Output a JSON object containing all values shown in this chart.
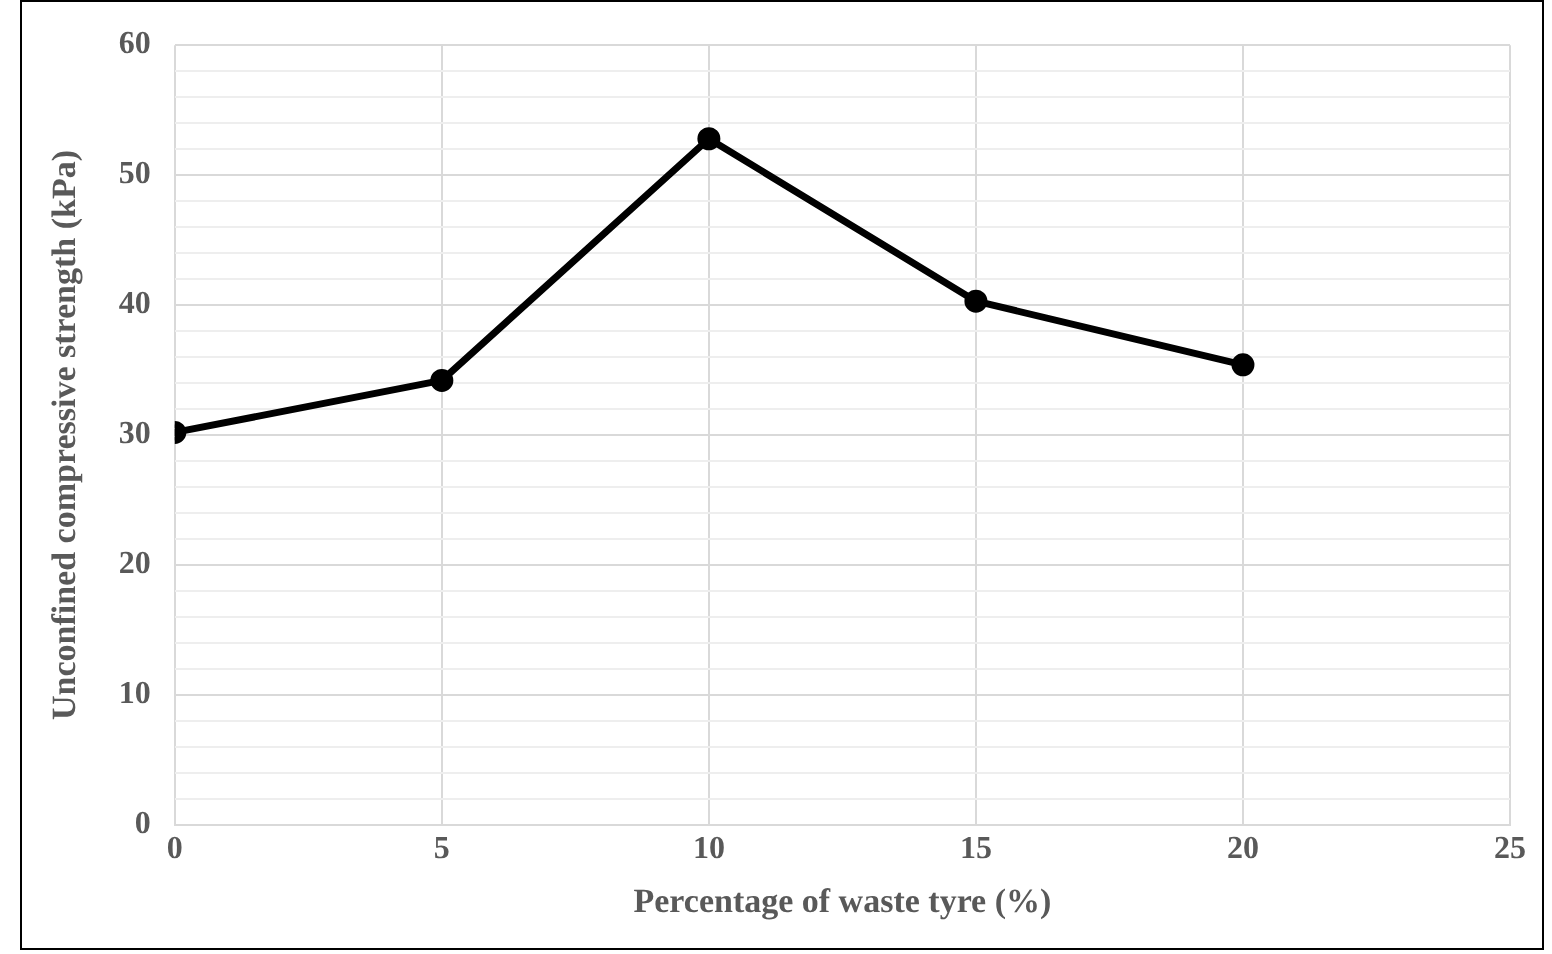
{
  "chart_data": {
    "type": "line",
    "xlabel": "Percentage of waste tyre (%)",
    "ylabel": "Unconfined compressive strength (kPa)",
    "x": [
      0,
      5,
      10,
      15,
      20
    ],
    "series": [
      {
        "color": "#000000",
        "values": [
          30.2,
          34.2,
          52.8,
          40.3,
          35.4
        ]
      }
    ],
    "xlim": [
      0,
      25
    ],
    "xticks": [
      0,
      5,
      10,
      15,
      20,
      25
    ],
    "ylim": [
      0,
      60
    ],
    "yticks": [
      0,
      {
        "value": 2,
        "label": null
      },
      {
        "value": 4,
        "label": null
      },
      {
        "value": 6,
        "label": null
      },
      {
        "value": 8,
        "label": null
      },
      10,
      {
        "value": 12,
        "label": null
      },
      {
        "value": 14,
        "label": null
      },
      {
        "value": 16,
        "label": null
      },
      {
        "value": 18,
        "label": null
      },
      20,
      {
        "value": 22,
        "label": null
      },
      {
        "value": 24,
        "label": null
      },
      {
        "value": 26,
        "label": null
      },
      {
        "value": 28,
        "label": null
      },
      30,
      {
        "value": 32,
        "label": null
      },
      {
        "value": 34,
        "label": null
      },
      {
        "value": 36,
        "label": null
      },
      {
        "value": 38,
        "label": null
      },
      40,
      {
        "value": 42,
        "label": null
      },
      {
        "value": 44,
        "label": null
      },
      {
        "value": 46,
        "label": null
      },
      {
        "value": 48,
        "label": null
      },
      50,
      {
        "value": 52,
        "label": null
      },
      {
        "value": 54,
        "label": null
      },
      {
        "value": 56,
        "label": null
      },
      {
        "value": 58,
        "label": null
      },
      60
    ],
    "grid": true,
    "legend": false,
    "marker": "circle",
    "line_style": "solid"
  }
}
